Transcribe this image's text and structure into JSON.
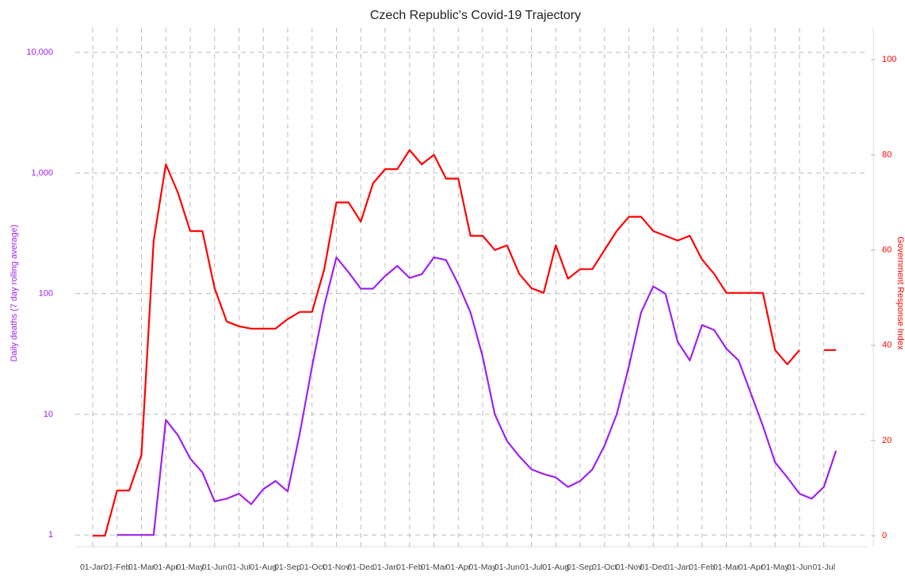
{
  "chart_data": {
    "type": "line",
    "title": "Czech Republic's Covid-19 Trajectory",
    "ylabel": "Daily deaths (7 day rolling average)",
    "y2label": "Government Response Index",
    "categories": [
      "01-Jan",
      null,
      "01-Feb",
      null,
      "01-Mar",
      null,
      "01-Apr",
      null,
      "01-May",
      null,
      "01-Jun",
      null,
      "01-Jul",
      null,
      "01-Aug",
      null,
      "01-Sep",
      null,
      "01-Oct",
      null,
      "01-Nov",
      null,
      "01-Dec",
      null,
      "01-Jan",
      null,
      "01-Feb",
      null,
      "01-Mar",
      null,
      "01-Apr",
      null,
      "01-May",
      null,
      "01-Jun",
      null,
      "01-Jul",
      null,
      "01-Aug",
      null,
      "01-Sep",
      null,
      "01-Oct",
      null,
      "01-Nov",
      null,
      "01-Dec",
      null,
      "01-Jan",
      null,
      "01-Feb",
      null,
      "01-Mar",
      null,
      "01-Apr",
      null,
      "01-May",
      null,
      "01-Jun",
      null,
      "01-Jul",
      null
    ],
    "series": [
      {
        "color": "#a020f0",
        "axis": "y",
        "values": [
          null,
          null,
          1,
          1,
          1,
          1,
          9,
          6.7,
          4.3,
          3.3,
          1.9,
          2,
          2.2,
          1.8,
          2.4,
          2.8,
          2.3,
          7,
          25,
          80,
          200,
          150,
          110,
          110,
          140,
          170,
          135,
          145,
          200,
          190,
          120,
          70,
          30,
          10,
          6,
          4.5,
          3.5,
          3.2,
          3,
          2.5,
          2.8,
          3.5,
          5.5,
          10,
          25,
          70,
          115,
          100,
          40,
          28,
          55,
          50,
          35,
          28,
          15,
          8,
          4,
          3,
          2.2,
          2,
          2.5,
          5
        ]
      },
      {
        "color": "#ff0000",
        "axis": "y2",
        "values": [
          0,
          0,
          9.5,
          9.5,
          17,
          62,
          78,
          72,
          64,
          64,
          52,
          45,
          44,
          43.5,
          43.5,
          43.5,
          45.5,
          47,
          47,
          56,
          70,
          70,
          66,
          74,
          77,
          77,
          81,
          78,
          80,
          75,
          75,
          63,
          63,
          60,
          61,
          55,
          52,
          51,
          61,
          54,
          56,
          56,
          60,
          64,
          67,
          67,
          64,
          63,
          62,
          63,
          58,
          55,
          51,
          51,
          51,
          51,
          39,
          36,
          39,
          null,
          39,
          39
        ]
      }
    ],
    "ylog": true,
    "ylim": [
      0.8,
      16000
    ],
    "yticks": [
      1,
      10,
      100,
      {
        "value": 1000,
        "label": "1,000"
      },
      {
        "value": 10000,
        "label": "10,000"
      }
    ],
    "y2lim": [
      -2.3,
      106.7
    ],
    "y2ticks": [
      0,
      20,
      40,
      60,
      80,
      100
    ],
    "grid": true
  }
}
